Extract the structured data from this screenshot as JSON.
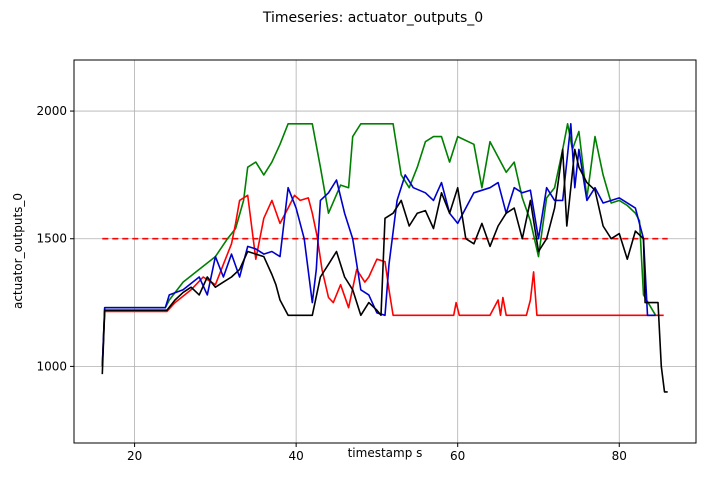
{
  "chart_data": {
    "type": "line",
    "title": "Timeseries: actuator_outputs_0",
    "xlabel": "timestamp s",
    "ylabel": "actuator_outputs_0",
    "xlim": [
      12.5,
      89.5
    ],
    "ylim": [
      700,
      2200
    ],
    "xticks": [
      20,
      40,
      60,
      80
    ],
    "yticks": [
      1000,
      1500,
      2000
    ],
    "grid": true,
    "series": [
      {
        "color": "#ff0000",
        "style": "dashed",
        "x": [
          16.0,
          86.0
        ],
        "y": [
          1500,
          1500
        ]
      },
      {
        "color": "#008000",
        "style": "solid",
        "x": [
          16.0,
          16.3,
          23.8,
          24.3,
          26.0,
          28.0,
          30.0,
          31.5,
          32.5,
          33.5,
          34.0,
          35.0,
          36.0,
          37.0,
          38.0,
          39.0,
          40.0,
          42.0,
          43.0,
          44.0,
          45.5,
          46.5,
          47.0,
          48.0,
          49.0,
          50.0,
          52.0,
          53.0,
          54.0,
          55.0,
          56.0,
          57.0,
          58.0,
          59.0,
          60.0,
          62.0,
          63.0,
          64.0,
          65.0,
          66.0,
          67.0,
          68.0,
          69.0,
          70.0,
          71.0,
          72.0,
          73.0,
          73.6,
          74.2,
          75.0,
          76.0,
          77.0,
          78.0,
          79.0,
          80.0,
          81.0,
          82.0,
          82.5,
          83.0,
          84.5
        ],
        "y": [
          1000,
          1230,
          1230,
          1260,
          1330,
          1380,
          1430,
          1500,
          1540,
          1650,
          1780,
          1800,
          1750,
          1800,
          1870,
          1950,
          1950,
          1950,
          1780,
          1600,
          1710,
          1700,
          1900,
          1950,
          1950,
          1950,
          1950,
          1750,
          1700,
          1780,
          1880,
          1900,
          1900,
          1800,
          1900,
          1870,
          1700,
          1880,
          1820,
          1760,
          1800,
          1660,
          1570,
          1430,
          1660,
          1700,
          1850,
          1950,
          1850,
          1920,
          1660,
          1900,
          1750,
          1640,
          1650,
          1630,
          1600,
          1570,
          1280,
          1200
        ]
      },
      {
        "color": "#ff0000",
        "style": "solid",
        "x": [
          16.0,
          16.3,
          24.0,
          25.0,
          27.0,
          28.5,
          30.0,
          31.0,
          32.0,
          32.5,
          33.0,
          34.0,
          35.0,
          36.0,
          37.0,
          38.0,
          39.0,
          39.8,
          40.5,
          41.5,
          42.0,
          42.6,
          43.2,
          44.0,
          44.6,
          45.5,
          46.5,
          47.5,
          48.5,
          49.0,
          50.0,
          51.0,
          51.5,
          52.0,
          53.0,
          58.0,
          59.5,
          59.8,
          60.2,
          60.6,
          64.0,
          65.0,
          65.3,
          65.6,
          66.0,
          67.0,
          68.5,
          69.0,
          69.4,
          69.8,
          72.0,
          85.5
        ],
        "y": [
          1000,
          1215,
          1215,
          1250,
          1300,
          1350,
          1320,
          1400,
          1480,
          1560,
          1650,
          1670,
          1420,
          1580,
          1650,
          1560,
          1620,
          1670,
          1650,
          1660,
          1600,
          1510,
          1380,
          1270,
          1250,
          1320,
          1230,
          1380,
          1330,
          1350,
          1420,
          1410,
          1300,
          1200,
          1200,
          1200,
          1200,
          1250,
          1200,
          1200,
          1200,
          1260,
          1200,
          1270,
          1200,
          1200,
          1200,
          1260,
          1370,
          1200,
          1200,
          1200
        ]
      },
      {
        "color": "#0000cd",
        "style": "solid",
        "x": [
          16.0,
          16.3,
          23.8,
          24.3,
          26.0,
          28.0,
          29.0,
          30.0,
          31.0,
          32.0,
          33.0,
          34.0,
          35.0,
          36.0,
          37.0,
          38.0,
          39.0,
          40.0,
          41.0,
          42.0,
          42.5,
          43.0,
          44.0,
          45.0,
          46.0,
          47.0,
          48.0,
          49.0,
          50.0,
          51.0,
          51.5,
          52.5,
          53.5,
          54.5,
          56.0,
          57.0,
          58.0,
          59.0,
          60.0,
          62.0,
          64.0,
          65.0,
          66.0,
          67.0,
          68.0,
          69.0,
          70.0,
          71.0,
          72.0,
          73.0,
          74.0,
          74.5,
          75.0,
          76.0,
          77.0,
          78.0,
          80.0,
          82.0,
          83.0,
          83.5,
          84.5
        ],
        "y": [
          1000,
          1230,
          1230,
          1280,
          1300,
          1350,
          1280,
          1430,
          1350,
          1440,
          1350,
          1470,
          1460,
          1440,
          1450,
          1430,
          1700,
          1620,
          1500,
          1250,
          1380,
          1650,
          1680,
          1730,
          1600,
          1500,
          1300,
          1280,
          1210,
          1200,
          1400,
          1650,
          1750,
          1700,
          1680,
          1650,
          1720,
          1600,
          1560,
          1680,
          1700,
          1720,
          1600,
          1700,
          1680,
          1690,
          1500,
          1700,
          1650,
          1650,
          1950,
          1700,
          1850,
          1650,
          1700,
          1640,
          1660,
          1620,
          1500,
          1200,
          1200
        ]
      },
      {
        "color": "#000000",
        "style": "solid",
        "x": [
          16.0,
          16.3,
          24.0,
          25.0,
          26.0,
          27.0,
          28.0,
          29.0,
          30.0,
          31.0,
          32.0,
          33.0,
          34.0,
          35.0,
          36.0,
          37.0,
          37.5,
          38.0,
          39.0,
          42.0,
          43.0,
          44.0,
          45.0,
          46.0,
          47.0,
          48.0,
          49.0,
          50.0,
          50.5,
          51.0,
          52.0,
          53.0,
          54.0,
          55.0,
          56.0,
          57.0,
          58.0,
          59.0,
          60.0,
          61.0,
          62.0,
          63.0,
          64.0,
          65.0,
          66.0,
          67.0,
          68.0,
          69.0,
          70.0,
          71.0,
          72.0,
          73.0,
          73.5,
          74.5,
          75.0,
          76.0,
          77.0,
          78.0,
          79.0,
          80.0,
          81.0,
          82.0,
          83.0,
          83.2,
          84.0,
          84.8,
          85.2,
          85.6,
          86.0
        ],
        "y": [
          970,
          1220,
          1220,
          1260,
          1290,
          1310,
          1280,
          1350,
          1310,
          1330,
          1350,
          1380,
          1450,
          1440,
          1430,
          1360,
          1320,
          1260,
          1200,
          1200,
          1350,
          1400,
          1450,
          1350,
          1300,
          1200,
          1250,
          1220,
          1200,
          1580,
          1600,
          1650,
          1550,
          1600,
          1610,
          1540,
          1680,
          1600,
          1700,
          1500,
          1480,
          1560,
          1470,
          1550,
          1600,
          1620,
          1500,
          1650,
          1450,
          1500,
          1620,
          1850,
          1550,
          1850,
          1780,
          1720,
          1690,
          1550,
          1500,
          1520,
          1420,
          1530,
          1500,
          1250,
          1250,
          1250,
          1000,
          900,
          900
        ]
      }
    ]
  }
}
